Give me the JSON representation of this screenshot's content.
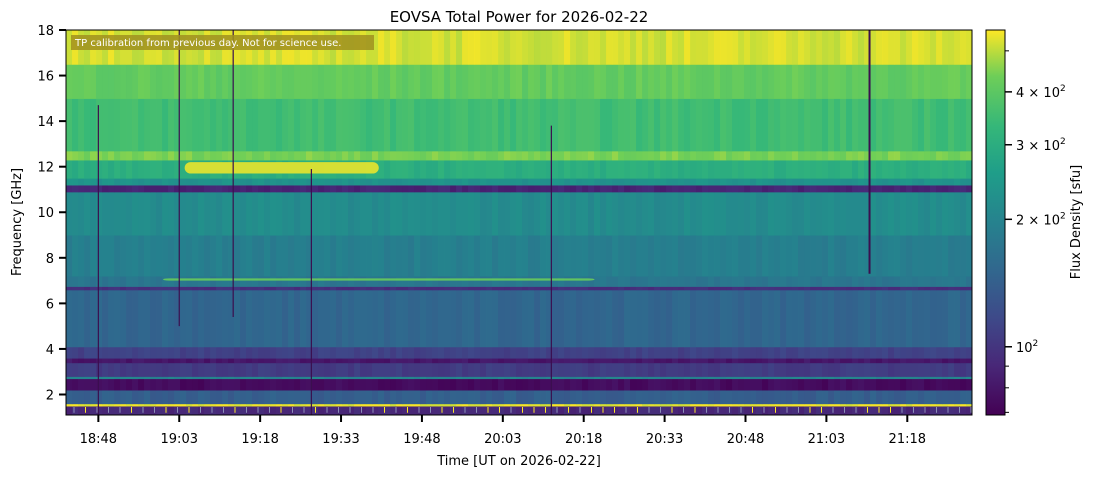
{
  "chart_data": {
    "type": "heatmap",
    "title": "EOVSA Total Power for 2026-02-22",
    "xlabel": "Time [UT on 2026-02-22]",
    "ylabel": "Frequency [GHz]",
    "annotation": "TP calibration from previous day. Not for science use.",
    "xlim_minutes_utc": [
      1122,
      1290
    ],
    "xticks": [
      {
        "label": "18:48",
        "min": 1128
      },
      {
        "label": "19:03",
        "min": 1143
      },
      {
        "label": "19:18",
        "min": 1158
      },
      {
        "label": "19:33",
        "min": 1173
      },
      {
        "label": "19:48",
        "min": 1188
      },
      {
        "label": "20:03",
        "min": 1203
      },
      {
        "label": "20:18",
        "min": 1218
      },
      {
        "label": "20:33",
        "min": 1233
      },
      {
        "label": "20:48",
        "min": 1248
      },
      {
        "label": "21:03",
        "min": 1263
      },
      {
        "label": "21:18",
        "min": 1278
      }
    ],
    "ylim": [
      1.1,
      18
    ],
    "yticks": [
      "2",
      "4",
      "6",
      "8",
      "10",
      "12",
      "14",
      "16",
      "18"
    ],
    "colorbar": {
      "label": "Flux Density [sfu]",
      "scale": "log",
      "range": [
        69,
        560
      ],
      "colormap": "viridis",
      "ticks": [
        {
          "value": 100,
          "label": "10",
          "exp": "2"
        },
        {
          "value": 200,
          "label": "2 × 10",
          "exp": "2"
        },
        {
          "value": 300,
          "label": "3 × 10",
          "exp": "2"
        },
        {
          "value": 400,
          "label": "4 × 10",
          "exp": "2"
        }
      ],
      "minor_ticks": [
        70,
        80,
        90,
        500
      ]
    },
    "bands": [
      {
        "f": [
          1.1,
          1.5
        ],
        "v": 90
      },
      {
        "f": [
          1.5,
          1.6
        ],
        "v": 540
      },
      {
        "f": [
          1.6,
          2.2
        ],
        "v": 140
      },
      {
        "f": [
          2.2,
          2.7
        ],
        "v": 74
      },
      {
        "f": [
          2.7,
          2.8
        ],
        "v": 200
      },
      {
        "f": [
          2.8,
          3.4
        ],
        "v": 105
      },
      {
        "f": [
          3.4,
          3.6
        ],
        "v": 80
      },
      {
        "f": [
          3.6,
          4.1
        ],
        "v": 110
      },
      {
        "f": [
          4.1,
          6.6
        ],
        "v": 150
      },
      {
        "f": [
          6.6,
          6.75
        ],
        "v": 95
      },
      {
        "f": [
          6.75,
          7.2
        ],
        "v": 175
      },
      {
        "f": [
          7.2,
          9.0
        ],
        "v": 190
      },
      {
        "f": [
          9.0,
          10.9
        ],
        "v": 215
      },
      {
        "f": [
          10.9,
          11.2
        ],
        "v": 88
      },
      {
        "f": [
          11.2,
          11.5
        ],
        "v": 230
      },
      {
        "f": [
          11.5,
          12.3
        ],
        "v": 300
      },
      {
        "f": [
          12.3,
          12.7
        ],
        "v": 440
      },
      {
        "f": [
          12.7,
          15.0
        ],
        "v": 350
      },
      {
        "f": [
          15.0,
          16.5
        ],
        "v": 410
      },
      {
        "f": [
          16.5,
          18.0
        ],
        "v": 520
      }
    ],
    "bursts": [
      {
        "t": [
          1144,
          1180
        ],
        "f": [
          11.7,
          12.2
        ],
        "v": 540
      },
      {
        "t": [
          1140,
          1220
        ],
        "f": [
          7.0,
          7.1
        ],
        "v": 420
      }
    ],
    "dropouts": [
      {
        "t": 1128,
        "f": [
          1.1,
          14.7
        ]
      },
      {
        "t": 1143,
        "f": [
          5.0,
          18
        ]
      },
      {
        "t": 1153,
        "f": [
          5.4,
          18
        ]
      },
      {
        "t": 1167.5,
        "f": [
          1.1,
          11.9
        ]
      },
      {
        "t": 1212,
        "f": [
          1.1,
          13.8
        ]
      },
      {
        "t": 1271,
        "f": [
          7.3,
          18
        ]
      }
    ]
  }
}
